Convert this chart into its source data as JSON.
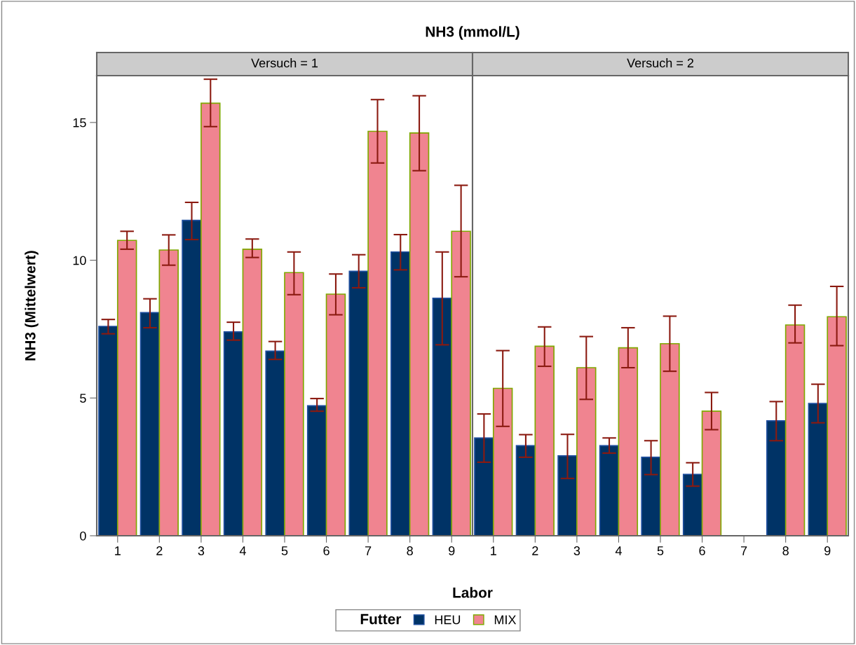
{
  "chart_data": [
    {
      "type": "bar",
      "title": "NH3 (mmol/L)",
      "subtitle": "Versuch = 1",
      "xlabel": "Labor",
      "ylabel": "NH3 (Mittelwert)",
      "legend_title": "Futter",
      "legend": "bottom",
      "categories": [
        "1",
        "2",
        "3",
        "4",
        "5",
        "6",
        "7",
        "8",
        "9"
      ],
      "ylim": [
        0,
        16.7
      ],
      "yticks": [
        0,
        5,
        10,
        15
      ],
      "series": [
        {
          "name": "HEU",
          "color": "#003366",
          "values": [
            7.6,
            8.1,
            11.45,
            7.4,
            6.7,
            4.72,
            9.6,
            10.3,
            8.62
          ],
          "errors": [
            [
              7.33,
              7.85
            ],
            [
              7.55,
              8.6
            ],
            [
              10.75,
              12.1
            ],
            [
              7.1,
              7.75
            ],
            [
              6.4,
              7.05
            ],
            [
              4.52,
              4.98
            ],
            [
              9.0,
              10.2
            ],
            [
              9.65,
              10.93
            ],
            [
              6.93,
              10.3
            ]
          ]
        },
        {
          "name": "MIX",
          "color": "#f08490",
          "values": [
            10.72,
            10.37,
            15.7,
            10.4,
            9.55,
            8.77,
            14.68,
            14.62,
            11.05
          ],
          "errors": [
            [
              10.4,
              11.05
            ],
            [
              9.82,
              10.92
            ],
            [
              14.85,
              16.57
            ],
            [
              10.1,
              10.77
            ],
            [
              8.75,
              10.3
            ],
            [
              8.02,
              9.5
            ],
            [
              13.53,
              15.83
            ],
            [
              13.25,
              15.97
            ],
            [
              9.4,
              12.72
            ]
          ]
        }
      ]
    },
    {
      "type": "bar",
      "subtitle": "Versuch = 2",
      "categories": [
        "1",
        "2",
        "3",
        "4",
        "5",
        "6",
        "7",
        "8",
        "9"
      ],
      "ylim": [
        0,
        16.7
      ],
      "yticks": [
        0,
        5,
        10,
        15
      ],
      "tick_labels": "x",
      "series": [
        {
          "color": "#003366",
          "values": [
            3.55,
            3.27,
            2.9,
            3.27,
            2.85,
            2.23,
            null,
            4.17,
            4.8
          ],
          "errors": [
            [
              2.67,
              4.42
            ],
            [
              2.85,
              3.67
            ],
            [
              2.08,
              3.68
            ],
            [
              3.0,
              3.55
            ],
            [
              2.22,
              3.45
            ],
            [
              1.8,
              2.65
            ],
            null,
            [
              3.45,
              4.87
            ],
            [
              4.1,
              5.5
            ]
          ]
        },
        {
          "color": "#f08490",
          "values": [
            5.35,
            6.88,
            6.1,
            6.82,
            6.97,
            4.52,
            null,
            7.65,
            7.95
          ],
          "errors": [
            [
              3.97,
              6.72
            ],
            [
              6.15,
              7.58
            ],
            [
              4.95,
              7.23
            ],
            [
              6.1,
              7.55
            ],
            [
              5.97,
              7.97
            ],
            [
              3.85,
              5.2
            ],
            null,
            [
              7.0,
              8.37
            ],
            [
              6.9,
              9.05
            ]
          ]
        }
      ]
    }
  ]
}
